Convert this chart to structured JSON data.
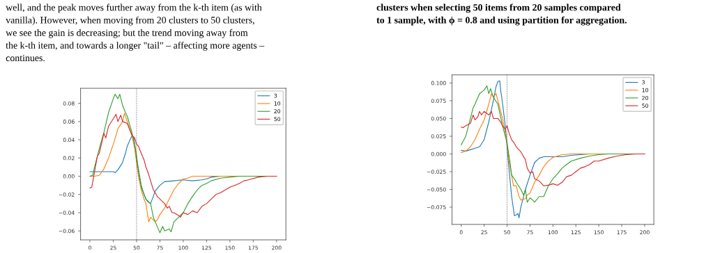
{
  "chart_data": [
    {
      "type": "line",
      "legend": "top right",
      "grid": false,
      "line_style": "solid",
      "annotations": [
        "well, and the peak moves further away from the k-th item (as with",
        "vanilla). However, when moving from 20 clusters to 50 clusters,",
        "we see the gain is decreasing; but the trend moving away from",
        "the k-th item, and towards a longer \"tail\" – affecting more agents –",
        "continues."
      ],
      "xlim": [
        -10,
        210
      ],
      "xticks": [
        0,
        25,
        50,
        75,
        100,
        125,
        150,
        175,
        200
      ],
      "ylim": [
        -0.0698,
        0.0965
      ],
      "yticks": [
        {
          "value": -0.06,
          "label": "−0.06"
        },
        {
          "value": -0.04,
          "label": "−0.04"
        },
        {
          "value": -0.02,
          "label": "−0.02"
        },
        {
          "value": 0,
          "label": "0.00"
        },
        {
          "value": 0.02,
          "label": "0.02"
        },
        {
          "value": 0.04,
          "label": "0.04"
        },
        {
          "value": 0.06,
          "label": "0.06"
        },
        {
          "value": 0.08,
          "label": "0.08"
        }
      ],
      "ref_lines": [
        {
          "axis": "x",
          "value": 50,
          "color": "#555555",
          "line_style": "dotted"
        }
      ],
      "series": [
        {
          "name": "3",
          "color": "#1f77b4",
          "x": [
            0,
            5,
            10,
            15,
            20,
            25,
            27,
            30,
            35,
            38,
            40,
            43,
            45,
            47,
            50,
            52,
            55,
            60,
            62,
            65,
            68,
            70,
            75,
            80,
            90,
            100,
            110,
            120,
            125,
            130,
            140,
            150
          ],
          "values": [
            0.005,
            0.005,
            0.005,
            0.005,
            0.005,
            0.005,
            0.004,
            0.007,
            0.015,
            0.025,
            0.033,
            0.04,
            0.044,
            0.042,
            0.02,
            0.005,
            -0.012,
            -0.025,
            -0.028,
            -0.03,
            -0.022,
            -0.016,
            -0.01,
            -0.006,
            -0.005,
            -0.004,
            -0.005,
            -0.004,
            -0.003,
            -0.001,
            0,
            0
          ]
        },
        {
          "name": "10",
          "color": "#ff7f0e",
          "x": [
            0,
            5,
            10,
            15,
            20,
            25,
            28,
            30,
            35,
            37,
            40,
            45,
            48,
            50,
            52,
            55,
            58,
            60,
            63,
            65,
            70,
            72,
            75,
            80,
            85,
            90,
            95,
            100,
            105,
            110,
            120,
            140,
            160,
            180,
            200
          ],
          "values": [
            0,
            0,
            0.001,
            0.008,
            0.02,
            0.035,
            0.045,
            0.052,
            0.06,
            0.069,
            0.06,
            0.045,
            0.03,
            0.015,
            0,
            -0.015,
            -0.025,
            -0.03,
            -0.05,
            -0.045,
            -0.05,
            -0.048,
            -0.042,
            -0.035,
            -0.025,
            -0.015,
            -0.008,
            -0.003,
            -0.002,
            0,
            0,
            0,
            0,
            0,
            0
          ]
        },
        {
          "name": "20",
          "color": "#2ca02c",
          "x": [
            0,
            3,
            5,
            10,
            15,
            20,
            25,
            27,
            30,
            32,
            35,
            38,
            40,
            45,
            48,
            50,
            52,
            55,
            58,
            60,
            65,
            68,
            70,
            75,
            78,
            80,
            85,
            87,
            90,
            95,
            100,
            105,
            110,
            115,
            120,
            125,
            130,
            140,
            150,
            160,
            180,
            200
          ],
          "values": [
            0,
            0.001,
            0.01,
            0.03,
            0.048,
            0.07,
            0.085,
            0.09,
            0.085,
            0.09,
            0.078,
            0.07,
            0.066,
            0.048,
            0.035,
            0.022,
            0.008,
            -0.01,
            -0.02,
            -0.025,
            -0.03,
            -0.045,
            -0.05,
            -0.062,
            -0.055,
            -0.06,
            -0.058,
            -0.061,
            -0.05,
            -0.045,
            -0.04,
            -0.03,
            -0.022,
            -0.015,
            -0.01,
            -0.008,
            -0.005,
            -0.002,
            -0.001,
            0,
            0,
            0
          ]
        },
        {
          "name": "50",
          "color": "#d62728",
          "x": [
            0,
            2,
            5,
            8,
            10,
            15,
            17,
            20,
            25,
            28,
            30,
            33,
            35,
            40,
            45,
            48,
            50,
            52,
            55,
            58,
            60,
            62,
            65,
            68,
            70,
            72,
            75,
            80,
            83,
            85,
            88,
            90,
            95,
            97,
            100,
            105,
            110,
            115,
            120,
            125,
            130,
            135,
            140,
            145,
            150,
            155,
            160,
            165,
            170,
            180,
            190,
            200
          ],
          "values": [
            -0.013,
            -0.012,
            0.005,
            0.022,
            0.025,
            0.047,
            0.042,
            0.055,
            0.063,
            0.068,
            0.06,
            0.067,
            0.06,
            0.058,
            0.045,
            0.042,
            0.035,
            0.033,
            0.025,
            0.018,
            0.01,
            0.005,
            -0.005,
            -0.015,
            -0.018,
            -0.022,
            -0.025,
            -0.03,
            -0.035,
            -0.033,
            -0.04,
            -0.04,
            -0.043,
            -0.045,
            -0.04,
            -0.042,
            -0.038,
            -0.04,
            -0.033,
            -0.03,
            -0.025,
            -0.02,
            -0.018,
            -0.015,
            -0.012,
            -0.01,
            -0.008,
            -0.005,
            -0.004,
            -0.001,
            0,
            0
          ]
        }
      ]
    },
    {
      "type": "line",
      "legend": "top right",
      "grid": false,
      "line_style": "solid",
      "annotations": [
        "clusters when selecting 50 items from 20 samples compared",
        "to 1 sample, with ϕ = 0.8 and using partition for aggregation."
      ],
      "xlim": [
        -10,
        210
      ],
      "xticks": [
        0,
        25,
        50,
        75,
        100,
        125,
        150,
        175,
        200
      ],
      "ylim": [
        -0.0993,
        0.1114
      ],
      "yticks": [
        {
          "value": -0.075,
          "label": "−0.075"
        },
        {
          "value": -0.05,
          "label": "−0.050"
        },
        {
          "value": -0.025,
          "label": "−0.025"
        },
        {
          "value": 0,
          "label": "0.000"
        },
        {
          "value": 0.025,
          "label": "0.025"
        },
        {
          "value": 0.05,
          "label": "0.050"
        },
        {
          "value": 0.075,
          "label": "0.075"
        },
        {
          "value": 0.1,
          "label": "0.100"
        }
      ],
      "ref_lines": [
        {
          "axis": "x",
          "value": 50,
          "color": "#555555",
          "line_style": "dotted"
        }
      ],
      "series": [
        {
          "name": "3",
          "color": "#1f77b4",
          "x": [
            0,
            5,
            10,
            15,
            20,
            25,
            28,
            30,
            35,
            38,
            40,
            42,
            43,
            45,
            48,
            50,
            52,
            55,
            58,
            60,
            62,
            63,
            65,
            70,
            75,
            80,
            85,
            90,
            100,
            110,
            120,
            130,
            140,
            160
          ],
          "values": [
            0.005,
            0.004,
            0.006,
            0.008,
            0.01,
            0.02,
            0.035,
            0.045,
            0.075,
            0.095,
            0.102,
            0.103,
            0.09,
            0.072,
            0.04,
            0.01,
            -0.02,
            -0.06,
            -0.087,
            -0.086,
            -0.084,
            -0.09,
            -0.075,
            -0.05,
            -0.03,
            -0.012,
            -0.006,
            -0.004,
            -0.004,
            -0.004,
            -0.002,
            -0.001,
            0,
            0
          ]
        },
        {
          "name": "10",
          "color": "#ff7f0e",
          "x": [
            0,
            5,
            10,
            15,
            20,
            25,
            30,
            33,
            35,
            38,
            40,
            45,
            48,
            50,
            52,
            55,
            57,
            60,
            63,
            65,
            70,
            72,
            75,
            80,
            85,
            90,
            95,
            100,
            105,
            110,
            120,
            140,
            160,
            180,
            200
          ],
          "values": [
            0.002,
            0.004,
            0.01,
            0.02,
            0.035,
            0.048,
            0.07,
            0.085,
            0.08,
            0.085,
            0.075,
            0.05,
            0.03,
            0.015,
            -0.01,
            -0.03,
            -0.045,
            -0.045,
            -0.06,
            -0.065,
            -0.063,
            -0.058,
            -0.055,
            -0.04,
            -0.03,
            -0.018,
            -0.01,
            -0.005,
            -0.003,
            -0.001,
            0,
            0,
            0,
            0,
            0
          ]
        },
        {
          "name": "20",
          "color": "#2ca02c",
          "x": [
            0,
            3,
            5,
            10,
            13,
            15,
            20,
            25,
            28,
            30,
            32,
            35,
            40,
            45,
            48,
            50,
            53,
            55,
            58,
            60,
            65,
            68,
            70,
            72,
            75,
            78,
            80,
            85,
            90,
            95,
            100,
            105,
            110,
            115,
            120,
            130,
            140,
            150,
            160,
            180,
            200
          ],
          "values": [
            0.013,
            0.02,
            0.025,
            0.05,
            0.065,
            0.07,
            0.085,
            0.09,
            0.096,
            0.085,
            0.092,
            0.08,
            0.07,
            0.04,
            0.025,
            0.015,
            -0.01,
            -0.03,
            -0.035,
            -0.04,
            -0.05,
            -0.058,
            -0.05,
            -0.068,
            -0.062,
            -0.065,
            -0.068,
            -0.06,
            -0.06,
            -0.045,
            -0.035,
            -0.028,
            -0.02,
            -0.015,
            -0.01,
            -0.006,
            -0.003,
            -0.001,
            0,
            0,
            0
          ]
        },
        {
          "name": "50",
          "color": "#d62728",
          "x": [
            0,
            2,
            5,
            10,
            13,
            15,
            18,
            20,
            22,
            25,
            30,
            33,
            35,
            40,
            43,
            45,
            48,
            50,
            52,
            55,
            58,
            60,
            65,
            70,
            72,
            75,
            78,
            80,
            85,
            90,
            95,
            100,
            105,
            110,
            115,
            120,
            125,
            130,
            135,
            140,
            145,
            150,
            160,
            170,
            180,
            190,
            200
          ],
          "values": [
            0.038,
            0.037,
            0.04,
            0.043,
            0.055,
            0.048,
            0.052,
            0.06,
            0.055,
            0.06,
            0.055,
            0.06,
            0.05,
            0.05,
            0.045,
            0.04,
            0.035,
            0.04,
            0.03,
            0.02,
            0.015,
            0.01,
            0.003,
            -0.008,
            -0.02,
            -0.027,
            -0.025,
            -0.035,
            -0.038,
            -0.045,
            -0.044,
            -0.042,
            -0.044,
            -0.04,
            -0.032,
            -0.03,
            -0.025,
            -0.02,
            -0.018,
            -0.015,
            -0.01,
            -0.01,
            -0.006,
            -0.003,
            -0.001,
            0,
            0
          ]
        }
      ]
    }
  ]
}
